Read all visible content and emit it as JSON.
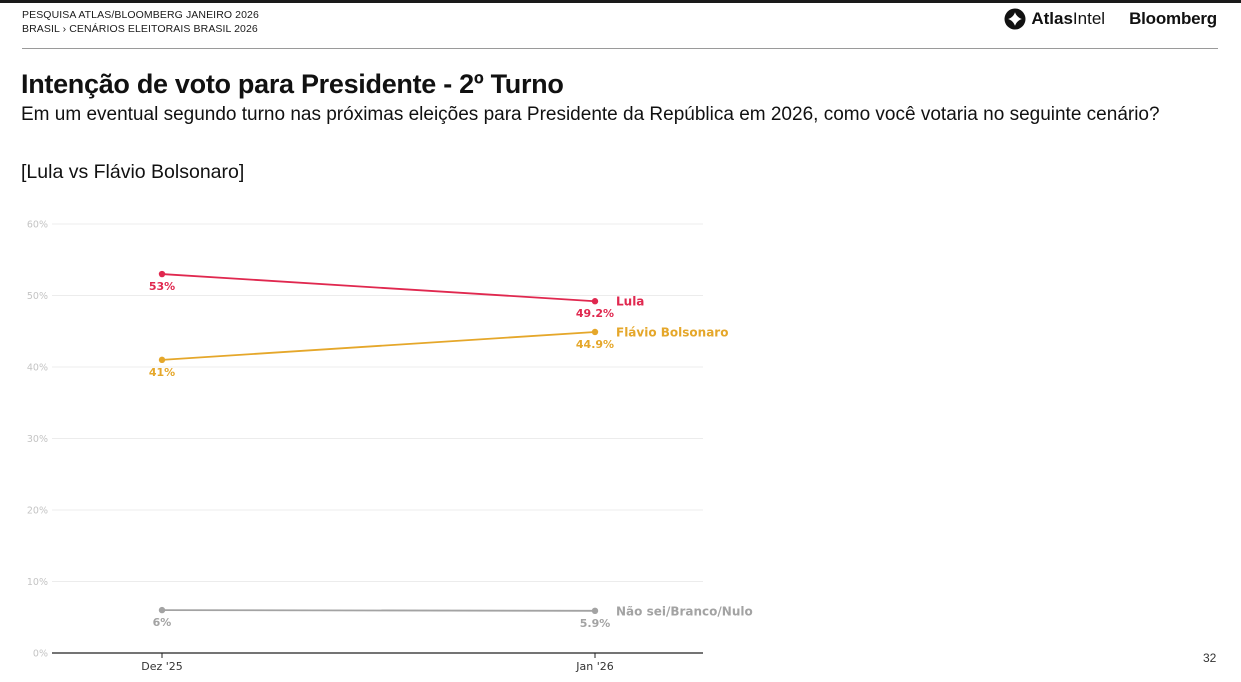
{
  "header": {
    "line1": "PESQUISA ATLAS/BLOOMBERG JANEIRO 2026",
    "line2": "BRASIL › CENÁRIOS ELEITORAIS BRASIL 2026",
    "logo_atlas_bold": "Atlas",
    "logo_atlas_light": "Intel",
    "logo_bloomberg": "Bloomberg"
  },
  "title": "Intenção de voto para Presidente - 2º Turno",
  "subtitle": "Em um eventual segundo turno nas próximas eleições para Presidente da República em 2026, como você votaria no seguinte cenário?",
  "scenario": "[Lula vs Flávio Bolsonaro]",
  "page_number": "32",
  "chart_data": {
    "type": "line",
    "title": "Intenção de voto para Presidente - 2º Turno",
    "xlabel": "",
    "ylabel": "",
    "categories": [
      "Dez '25",
      "Jan '26"
    ],
    "ylim": [
      0,
      60
    ],
    "yticks": [
      0,
      10,
      20,
      30,
      40,
      50,
      60
    ],
    "ytick_labels": [
      "0%",
      "10%",
      "20%",
      "30%",
      "40%",
      "50%",
      "60%"
    ],
    "grid": true,
    "legend": "inline-right",
    "series": [
      {
        "name": "Lula",
        "color": "#e0284f",
        "values": [
          53,
          49.2
        ],
        "labels": [
          "53%",
          "49.2%"
        ]
      },
      {
        "name": "Flávio Bolsonaro",
        "color": "#e5a72a",
        "values": [
          41,
          44.9
        ],
        "labels": [
          "41%",
          "44.9%"
        ]
      },
      {
        "name": "Não sei/Branco/Nulo",
        "color": "#a3a3a3",
        "values": [
          6,
          5.9
        ],
        "labels": [
          "6%",
          "5.9%"
        ]
      }
    ]
  }
}
